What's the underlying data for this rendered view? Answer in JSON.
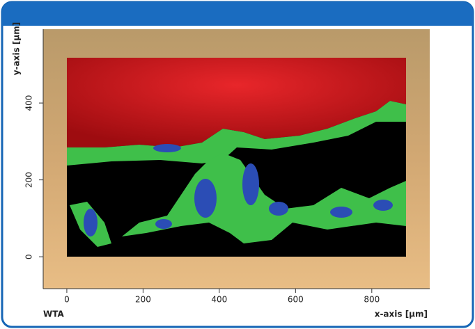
{
  "chart_data": {
    "type": "image",
    "x_label": "x-axis [µm]",
    "y_label": "y-axis [µm]",
    "corner_label": "WTA",
    "xlim": [
      -62,
      952
    ],
    "ylim": [
      -83,
      592
    ],
    "xticks": [
      0,
      200,
      400,
      600,
      800
    ],
    "yticks": [
      0,
      200,
      400
    ]
  }
}
